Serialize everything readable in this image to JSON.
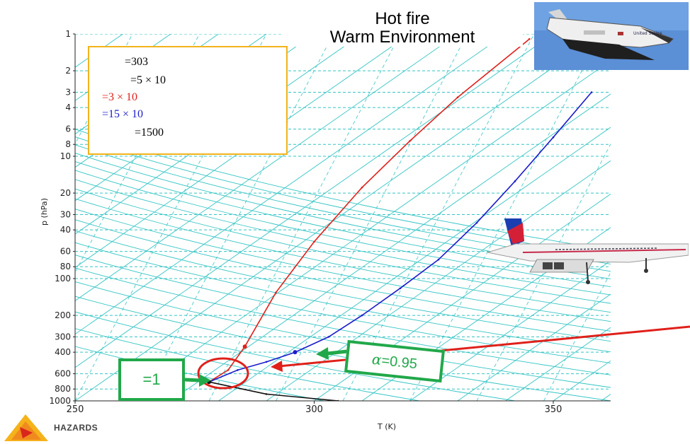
{
  "header": {
    "line1": "Hot fire",
    "line2": "Warm Environment"
  },
  "legend": {
    "lines": [
      {
        "text": "=303",
        "color": "#000000"
      },
      {
        "text": "=5 × 10",
        "color": "#000000"
      },
      {
        "text": "=3 × 10",
        "color": "#e0201a"
      },
      {
        "text": "=15 × 10",
        "color": "#1c1ccc"
      },
      {
        "text": "=1500",
        "color": "#000000"
      }
    ],
    "border_color": "#f2b31b"
  },
  "callouts": {
    "left": "=1",
    "right_symbol": "α",
    "right_value": "=0.95",
    "color": "#21a84a"
  },
  "icons": {
    "shuttle": "space-shuttle-image",
    "plane": "concorde-image",
    "logo": "hazards-logo"
  },
  "logo_text": "HAZARDS",
  "chart_data": {
    "type": "line",
    "title": "",
    "xlabel": "T (K)",
    "ylabel": "p (hPa)",
    "xlim": [
      250,
      362
    ],
    "ylim": [
      1000,
      1
    ],
    "y_scale": "log",
    "grid": true,
    "x_ticks": [
      250,
      300,
      350
    ],
    "x_tick_labels": [
      "250",
      "300",
      "350"
    ],
    "y_ticks": [
      1,
      2,
      3,
      4,
      6,
      8,
      10,
      20,
      30,
      40,
      60,
      80,
      100,
      200,
      300,
      400,
      600,
      800,
      1000
    ],
    "y_tick_labels": [
      "1",
      "2",
      "3",
      "4",
      "6",
      "8",
      "10",
      "20",
      "30",
      "40",
      "60",
      "80",
      "100",
      "200",
      "300",
      "400",
      "600",
      "800",
      "1000"
    ],
    "series": [
      {
        "color": "#e0201a",
        "x": [
          278,
          282,
          285.5,
          292,
          300,
          310,
          320,
          330,
          345
        ],
        "y": [
          700,
          560,
          360,
          130,
          50,
          18,
          7.5,
          3.3,
          1.1
        ]
      },
      {
        "color": "#1c1ccc",
        "x": [
          278,
          284,
          290,
          296,
          303,
          310,
          318,
          326,
          334,
          342,
          350,
          358
        ],
        "y": [
          700,
          560,
          480,
          400,
          300,
          200,
          120,
          70,
          35,
          16,
          7,
          3
        ]
      },
      {
        "color": "#111111",
        "x": [
          278,
          290,
          305
        ],
        "y": [
          700,
          880,
          1000
        ]
      }
    ],
    "markers": [
      {
        "x": 285.5,
        "y": 360,
        "color": "#e0201a"
      },
      {
        "x": 296,
        "y": 400,
        "color": "#1c1ccc"
      },
      {
        "x": 278,
        "y": 700,
        "color": "#111111"
      }
    ],
    "colors": {
      "grid_solid": "#35c4c4",
      "grid_dashed": "#35c4c4",
      "axis": "#222222"
    }
  }
}
